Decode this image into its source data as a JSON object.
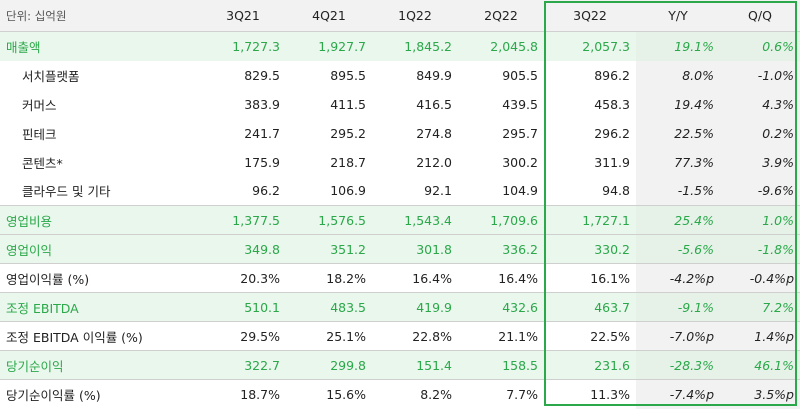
{
  "table": {
    "unit": "단위: 십억원",
    "columns": [
      "3Q21",
      "4Q21",
      "1Q22",
      "2Q22",
      "3Q22",
      "Y/Y",
      "Q/Q"
    ],
    "rows": [
      {
        "label": "매출액",
        "kind": "major",
        "values": [
          "1,727.3",
          "1,927.7",
          "1,845.2",
          "2,045.8",
          "2,057.3",
          "19.1%",
          "0.6%"
        ],
        "signs": [
          "pos",
          "pos"
        ]
      },
      {
        "label": "서치플랫폼",
        "kind": "sub",
        "values": [
          "829.5",
          "895.5",
          "849.9",
          "905.5",
          "896.2",
          "8.0%",
          "-1.0%"
        ],
        "signs": [
          "neg",
          "neg"
        ]
      },
      {
        "label": "커머스",
        "kind": "sub",
        "values": [
          "383.9",
          "411.5",
          "416.5",
          "439.5",
          "458.3",
          "19.4%",
          "4.3%"
        ],
        "signs": [
          "neg",
          "neg"
        ]
      },
      {
        "label": "핀테크",
        "kind": "sub",
        "values": [
          "241.7",
          "295.2",
          "274.8",
          "295.7",
          "296.2",
          "22.5%",
          "0.2%"
        ],
        "signs": [
          "neg",
          "neg"
        ]
      },
      {
        "label": "콘텐츠*",
        "kind": "sub",
        "values": [
          "175.9",
          "218.7",
          "212.0",
          "300.2",
          "311.9",
          "77.3%",
          "3.9%"
        ],
        "signs": [
          "neg",
          "neg"
        ]
      },
      {
        "label": "클라우드 및 기타",
        "kind": "sub",
        "values": [
          "96.2",
          "106.9",
          "92.1",
          "104.9",
          "94.8",
          "-1.5%",
          "-9.6%"
        ],
        "signs": [
          "neg",
          "neg"
        ]
      },
      {
        "label": "영업비용",
        "kind": "major",
        "values": [
          "1,377.5",
          "1,576.5",
          "1,543.4",
          "1,709.6",
          "1,727.1",
          "25.4%",
          "1.0%"
        ],
        "signs": [
          "pos",
          "pos"
        ]
      },
      {
        "label": "영업이익",
        "kind": "major",
        "values": [
          "349.8",
          "351.2",
          "301.8",
          "336.2",
          "330.2",
          "-5.6%",
          "-1.8%"
        ],
        "signs": [
          "pos",
          "pos"
        ]
      },
      {
        "label": "영업이익률 (%)",
        "kind": "ratio",
        "values": [
          "20.3%",
          "18.2%",
          "16.4%",
          "16.4%",
          "16.1%",
          "-4.2%p",
          "-0.4%p"
        ],
        "signs": [
          "neg",
          "neg"
        ]
      },
      {
        "label": "조정 EBITDA",
        "kind": "major",
        "values": [
          "510.1",
          "483.5",
          "419.9",
          "432.6",
          "463.7",
          "-9.1%",
          "7.2%"
        ],
        "signs": [
          "pos",
          "pos"
        ]
      },
      {
        "label": "조정 EBITDA 이익률 (%)",
        "kind": "ratio",
        "values": [
          "29.5%",
          "25.1%",
          "22.8%",
          "21.1%",
          "22.5%",
          "-7.0%p",
          "1.4%p"
        ],
        "signs": [
          "neg",
          "neg"
        ]
      },
      {
        "label": "당기순이익",
        "kind": "major",
        "values": [
          "322.7",
          "299.8",
          "151.4",
          "158.5",
          "231.6",
          "-28.3%",
          "46.1%"
        ],
        "signs": [
          "pos",
          "pos"
        ]
      },
      {
        "label": "당기순이익률 (%)",
        "kind": "ratio",
        "values": [
          "18.7%",
          "15.6%",
          "8.2%",
          "7.7%",
          "11.3%",
          "-7.4%p",
          "3.5%p"
        ],
        "signs": [
          "neg",
          "neg"
        ]
      }
    ]
  },
  "colors": {
    "accent": "#2aa84a",
    "highlight_row": "#eaf7ec",
    "header_bg": "#f2f2f2"
  }
}
